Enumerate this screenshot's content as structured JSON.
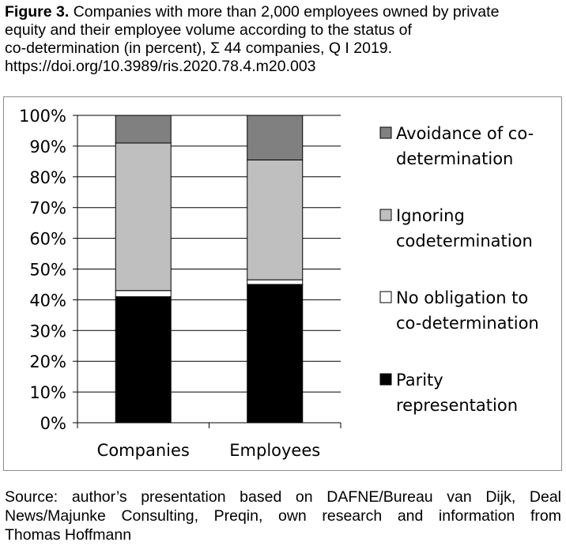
{
  "caption": {
    "label": "Figure 3.",
    "line1": "Companies with more than 2,000 employees owned by private",
    "line2": "equity and their employee volume according to the status of",
    "line3": "co-determination (in percent), Σ 44 companies, Q I 2019.",
    "line4": "https://doi.org/10.3989/ris.2020.78.4.m20.003"
  },
  "source": {
    "line1": "Source: author’s presentation based on DAFNE/Bureau van Dijk, Deal",
    "line2": "News/Majunke Consulting, Preqin, own research and information from",
    "line3": "Thomas Hoffmann"
  },
  "colors": {
    "parity": "#000000",
    "no_obligation": "#ffffff",
    "ignoring": "#bfbfbf",
    "avoidance": "#808080",
    "grid": "#000000"
  },
  "chart_data": {
    "type": "bar",
    "stacked": true,
    "categories": [
      "Companies",
      "Employees"
    ],
    "series": [
      {
        "name": "Parity representation",
        "values": [
          41,
          45
        ]
      },
      {
        "name": "No obligation to co-determination",
        "values": [
          2,
          1.5
        ]
      },
      {
        "name": "Ignoring codetermination",
        "values": [
          48,
          39
        ]
      },
      {
        "name": "Avoidance of co-determination",
        "values": [
          9,
          14.5
        ]
      }
    ],
    "ylim": [
      0,
      100
    ],
    "yticks": [
      "0%",
      "10%",
      "20%",
      "30%",
      "40%",
      "50%",
      "60%",
      "70%",
      "80%",
      "90%",
      "100%"
    ],
    "legend": [
      {
        "lines": [
          "Avoidance of co-",
          "determination"
        ],
        "color": "#808080"
      },
      {
        "lines": [
          "Ignoring",
          "codetermination"
        ],
        "color": "#bfbfbf"
      },
      {
        "lines": [
          "No obligation to",
          "co-determination"
        ],
        "color": "#ffffff"
      },
      {
        "lines": [
          "Parity",
          "representation"
        ],
        "color": "#000000"
      }
    ],
    "legend_position": "right",
    "grid": true
  }
}
